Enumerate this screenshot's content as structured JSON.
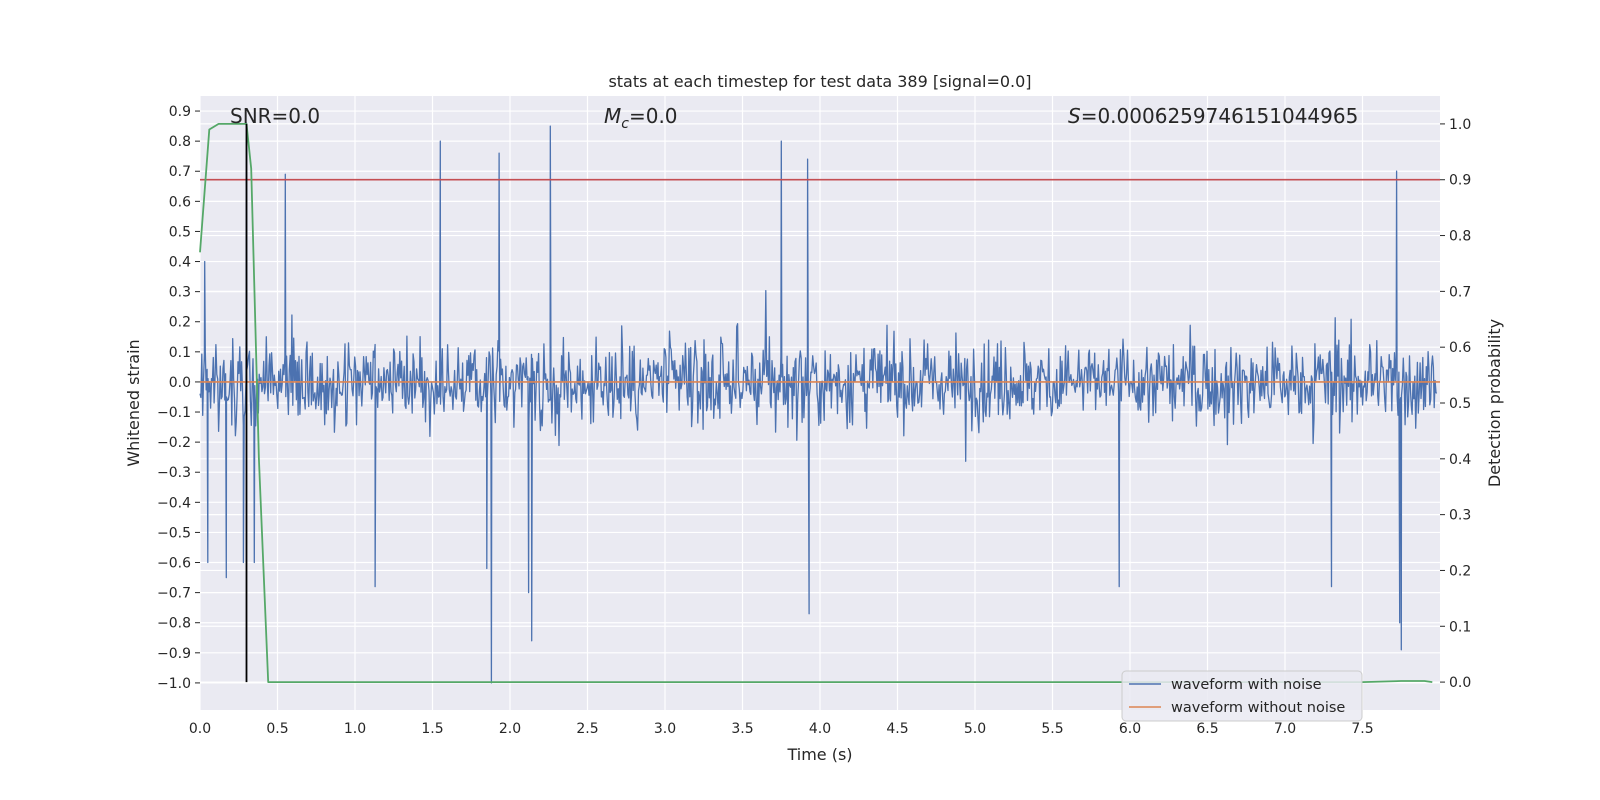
{
  "chart_data": {
    "type": "line",
    "title": "stats at each timestep for test data 389 [signal=0.0]",
    "xlabel": "Time (s)",
    "ylabel_left": "Whitened strain",
    "ylabel_right": "Detection probability",
    "xlim": [
      0.0,
      8.0
    ],
    "ylim_left": [
      -1.09,
      0.95
    ],
    "ylim_right": [
      -0.05,
      1.05
    ],
    "xticks": [
      0.0,
      0.5,
      1.0,
      1.5,
      2.0,
      2.5,
      3.0,
      3.5,
      4.0,
      4.5,
      5.0,
      5.5,
      6.0,
      6.5,
      7.0,
      7.5
    ],
    "xtick_labels": [
      "0.0",
      "0.5",
      "1.0",
      "1.5",
      "2.0",
      "2.5",
      "3.0",
      "3.5",
      "4.0",
      "4.5",
      "5.0",
      "5.5",
      "6.0",
      "6.5",
      "7.0",
      "7.5"
    ],
    "yticks_left": [
      0.9,
      0.8,
      0.7,
      0.6,
      0.5,
      0.4,
      0.3,
      0.2,
      0.1,
      0.0,
      -0.1,
      -0.2,
      -0.3,
      -0.4,
      -0.5,
      -0.6,
      -0.7,
      -0.8,
      -0.9,
      -1.0
    ],
    "ytick_labels_left": [
      "0.9",
      "0.8",
      "0.7",
      "0.6",
      "0.5",
      "0.4",
      "0.3",
      "0.2",
      "0.1",
      "0.0",
      "−0.1",
      "−0.2",
      "−0.3",
      "−0.4",
      "−0.5",
      "−0.6",
      "−0.7",
      "−0.8",
      "−0.9",
      "−1.0"
    ],
    "yticks_right": [
      1.0,
      0.9,
      0.8,
      0.7,
      0.6,
      0.5,
      0.4,
      0.3,
      0.2,
      0.1,
      0.0
    ],
    "ytick_labels_right": [
      "1.0",
      "0.9",
      "0.8",
      "0.7",
      "0.6",
      "0.5",
      "0.4",
      "0.3",
      "0.2",
      "0.1",
      "0.0"
    ],
    "grid": true,
    "legend_placement": "lower-right",
    "annotations": {
      "snr": "SNR=0.0",
      "mc_symbol": "M",
      "mc_sub": "c",
      "mc_value": "=0.0",
      "s_symbol": "S",
      "s_value": "=0.0006259746151044965"
    },
    "threshold_right": 0.9,
    "peak_marker_time": 0.3,
    "series": [
      {
        "name": "waveform with noise",
        "axis": "left",
        "color": "#4c72b0",
        "kind": "dense noise, amplitude mostly within [-0.45, 0.45]",
        "spikes": [
          {
            "t": 0.03,
            "v": 0.4
          },
          {
            "t": 0.05,
            "v": -0.6
          },
          {
            "t": 0.17,
            "v": -0.65
          },
          {
            "t": 0.28,
            "v": -0.6
          },
          {
            "t": 0.3,
            "v": 0.86
          },
          {
            "t": 0.35,
            "v": -0.6
          },
          {
            "t": 0.55,
            "v": 0.69
          },
          {
            "t": 1.13,
            "v": -0.68
          },
          {
            "t": 1.55,
            "v": 0.8
          },
          {
            "t": 1.85,
            "v": -0.62
          },
          {
            "t": 1.88,
            "v": -1.0
          },
          {
            "t": 1.93,
            "v": 0.76
          },
          {
            "t": 2.12,
            "v": -0.7
          },
          {
            "t": 2.14,
            "v": -0.86
          },
          {
            "t": 2.26,
            "v": 0.85
          },
          {
            "t": 3.75,
            "v": 0.8
          },
          {
            "t": 3.92,
            "v": 0.74
          },
          {
            "t": 3.93,
            "v": -0.77
          },
          {
            "t": 5.93,
            "v": -0.68
          },
          {
            "t": 7.3,
            "v": -0.68
          },
          {
            "t": 7.72,
            "v": 0.7
          },
          {
            "t": 7.74,
            "v": -0.8
          },
          {
            "t": 7.75,
            "v": -0.89
          }
        ]
      },
      {
        "name": "waveform without noise",
        "axis": "left",
        "color": "#dd8452",
        "x": [
          0.0,
          8.0
        ],
        "y": [
          0.0,
          0.0
        ]
      },
      {
        "name": "",
        "axis": "right",
        "color": "#55a868",
        "x": [
          0.0,
          0.06,
          0.12,
          0.2,
          0.26,
          0.3,
          0.33,
          0.38,
          0.44,
          0.6,
          1.0,
          2.0,
          4.0,
          6.0,
          7.5,
          7.75,
          7.9,
          7.95
        ],
        "y": [
          0.77,
          0.99,
          1.0,
          1.0,
          1.0,
          1.0,
          0.92,
          0.4,
          0.0,
          0.0,
          0.0,
          0.0,
          0.0,
          0.0,
          0.0,
          0.002,
          0.002,
          0.0
        ]
      }
    ]
  }
}
